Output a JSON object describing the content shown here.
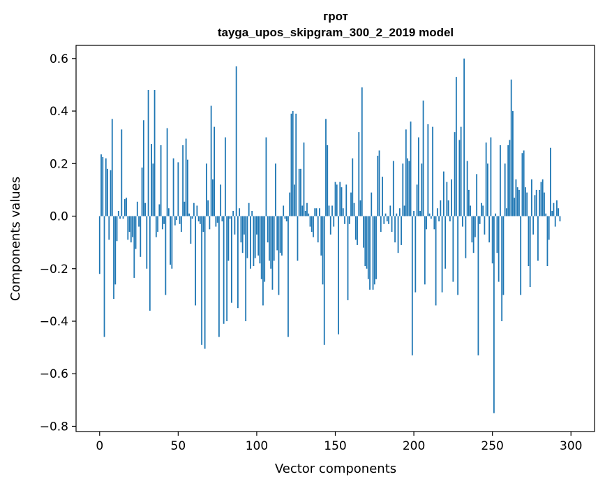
{
  "chart_data": {
    "type": "bar",
    "title": "грот",
    "subtitle": "tayga_upos_skipgram_300_2_2019 model",
    "xlabel": "Vector components",
    "ylabel": "Components values",
    "xlim": [
      -15,
      315
    ],
    "ylim": [
      -0.82,
      0.65
    ],
    "xticks": [
      0,
      50,
      100,
      150,
      200,
      250,
      300
    ],
    "xtick_labels": [
      "0",
      "50",
      "100",
      "150",
      "200",
      "250",
      "300"
    ],
    "yticks": [
      -0.8,
      -0.6,
      -0.4,
      -0.2,
      0.0,
      0.2,
      0.4,
      0.6
    ],
    "ytick_labels": [
      "−0.8",
      "−0.6",
      "−0.4",
      "−0.2",
      "0.0",
      "0.2",
      "0.4",
      "0.6"
    ],
    "bar_color": "#1f77b4",
    "grid": false,
    "x": "0..299",
    "values": [
      -0.22,
      0.235,
      0.225,
      -0.46,
      0.22,
      0.18,
      -0.09,
      0.175,
      0.37,
      -0.315,
      -0.26,
      -0.095,
      0.02,
      -0.01,
      0.33,
      -0.01,
      0.065,
      0.07,
      -0.09,
      -0.06,
      -0.1,
      -0.08,
      -0.235,
      -0.125,
      0.055,
      -0.04,
      -0.155,
      0.185,
      0.365,
      0.05,
      -0.2,
      0.48,
      -0.36,
      0.275,
      0.2,
      0.48,
      -0.08,
      -0.06,
      0.045,
      0.27,
      -0.05,
      -0.03,
      -0.3,
      0.335,
      0.03,
      -0.185,
      -0.2,
      0.22,
      -0.035,
      -0.015,
      0.205,
      -0.03,
      -0.06,
      0.27,
      0.055,
      0.295,
      0.215,
      0.01,
      -0.105,
      -0.01,
      0.05,
      -0.34,
      0.04,
      -0.02,
      -0.03,
      -0.49,
      -0.06,
      -0.505,
      0.2,
      0.06,
      -0.05,
      0.42,
      0.14,
      0.34,
      -0.04,
      -0.025,
      -0.46,
      0.12,
      -0.02,
      -0.41,
      0.3,
      -0.4,
      -0.17,
      -0.01,
      -0.33,
      0.02,
      -0.07,
      0.57,
      -0.35,
      0.03,
      -0.1,
      -0.14,
      -0.07,
      -0.4,
      -0.16,
      0.05,
      -0.2,
      0.02,
      -0.19,
      -0.16,
      -0.07,
      -0.15,
      -0.18,
      -0.24,
      -0.34,
      -0.25,
      0.3,
      -0.1,
      -0.17,
      -0.2,
      -0.28,
      -0.17,
      0.2,
      -0.13,
      -0.3,
      -0.14,
      -0.15,
      0.04,
      -0.01,
      -0.02,
      -0.46,
      0.09,
      0.39,
      0.4,
      0.12,
      0.39,
      -0.17,
      0.18,
      0.18,
      0.04,
      0.28,
      0.02,
      0.05,
      0.01,
      -0.04,
      -0.06,
      -0.08,
      0.03,
      0.03,
      -0.1,
      0.03,
      -0.15,
      -0.26,
      -0.49,
      0.37,
      0.27,
      0.04,
      -0.07,
      0.04,
      -0.04,
      0.13,
      0.12,
      -0.45,
      0.13,
      0.11,
      0.03,
      -0.03,
      0.12,
      -0.32,
      -0.03,
      0.09,
      0.22,
      0.05,
      -0.09,
      -0.11,
      0.32,
      0.06,
      0.49,
      -0.12,
      -0.19,
      -0.2,
      -0.24,
      -0.28,
      0.09,
      -0.28,
      -0.26,
      -0.24,
      0.23,
      0.25,
      -0.06,
      0.15,
      -0.03,
      0.01,
      -0.02,
      -0.03,
      0.04,
      -0.06,
      0.21,
      -0.1,
      0.01,
      -0.14,
      0.03,
      -0.11,
      0.2,
      0.04,
      0.33,
      0.22,
      0.21,
      0.36,
      -0.53,
      0.02,
      -0.29,
      0.12,
      0.3,
      0.02,
      0.2,
      0.44,
      -0.26,
      -0.05,
      0.35,
      0.01,
      -0.01,
      0.34,
      -0.05,
      -0.34,
      0.03,
      -0.02,
      0.06,
      -0.29,
      0.17,
      -0.2,
      0.13,
      0.06,
      -0.02,
      0.14,
      -0.25,
      0.32,
      0.53,
      -0.3,
      0.29,
      0.34,
      -0.04,
      0.6,
      -0.16,
      0.21,
      0.1,
      0.04,
      -0.1,
      -0.14,
      -0.08,
      0.16,
      -0.53,
      -0.03,
      0.05,
      0.04,
      -0.07,
      0.28,
      0.2,
      -0.1,
      0.3,
      -0.18,
      -0.75,
      0.01,
      -0.14,
      -0.25,
      0.27,
      -0.4,
      -0.3,
      0.2,
      0.03,
      0.27,
      0.29,
      0.52,
      0.4,
      0.07,
      0.14,
      0.11,
      0.1,
      -0.3,
      0.24,
      0.25,
      0.11,
      0.09,
      -0.19,
      -0.27,
      0.14,
      -0.07,
      0.08,
      0.1,
      -0.17,
      0.1,
      0.13,
      0.14,
      0.09,
      0.01,
      -0.19,
      -0.09,
      0.26,
      0.02,
      0.05,
      -0.04,
      0.06,
      0.03,
      -0.02,
      0.0,
      0.0,
      0.0,
      0.0,
      0.0,
      0.0
    ]
  }
}
